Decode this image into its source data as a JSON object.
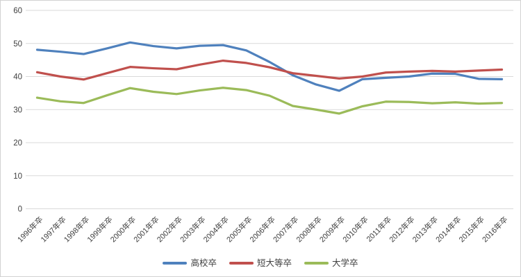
{
  "chart_data": {
    "type": "line",
    "title": "",
    "xlabel": "",
    "ylabel": "",
    "categories": [
      "1996年卒",
      "1997年卒",
      "1998年卒",
      "1999年卒",
      "2000年卒",
      "2001年卒",
      "2002年卒",
      "2003年卒",
      "2004年卒",
      "2005年卒",
      "2006年卒",
      "2007年卒",
      "2008年卒",
      "2009年卒",
      "2010年卒",
      "2011年卒",
      "2012年卒",
      "2013年卒",
      "2014年卒",
      "2015年卒",
      "2016年卒"
    ],
    "series": [
      {
        "name": "高校卒",
        "color": "#4F81BD",
        "values": [
          48.1,
          47.5,
          46.8,
          48.5,
          50.3,
          49.2,
          48.5,
          49.3,
          49.5,
          47.9,
          44.4,
          40.4,
          37.6,
          35.7,
          39.2,
          39.6,
          40.0,
          40.9,
          40.8,
          39.3,
          39.2
        ]
      },
      {
        "name": "短大等卒",
        "color": "#C0504D",
        "values": [
          41.3,
          40.0,
          39.1,
          41.0,
          42.9,
          42.5,
          42.2,
          43.6,
          44.8,
          44.1,
          42.8,
          41.0,
          40.2,
          39.4,
          40.0,
          41.2,
          41.5,
          41.7,
          41.5,
          41.8,
          42.1
        ]
      },
      {
        "name": "大学卒",
        "color": "#9BBB59",
        "values": [
          33.6,
          32.5,
          32.0,
          34.3,
          36.5,
          35.4,
          34.7,
          35.8,
          36.6,
          35.9,
          34.2,
          31.1,
          30.0,
          28.8,
          31.0,
          32.4,
          32.3,
          31.9,
          32.2,
          31.8,
          32.0
        ]
      }
    ],
    "ylim": [
      0,
      60
    ],
    "yticks": [
      0,
      10,
      20,
      30,
      40,
      50,
      60
    ],
    "grid": "horizontal",
    "legend_position": "bottom",
    "x_label_rotation_deg": 45
  },
  "style": {
    "gridline_color": "#d9d9d9",
    "axis_text_color": "#404040",
    "frame_border_color": "#d2d2d2",
    "background_color": "#ffffff"
  }
}
